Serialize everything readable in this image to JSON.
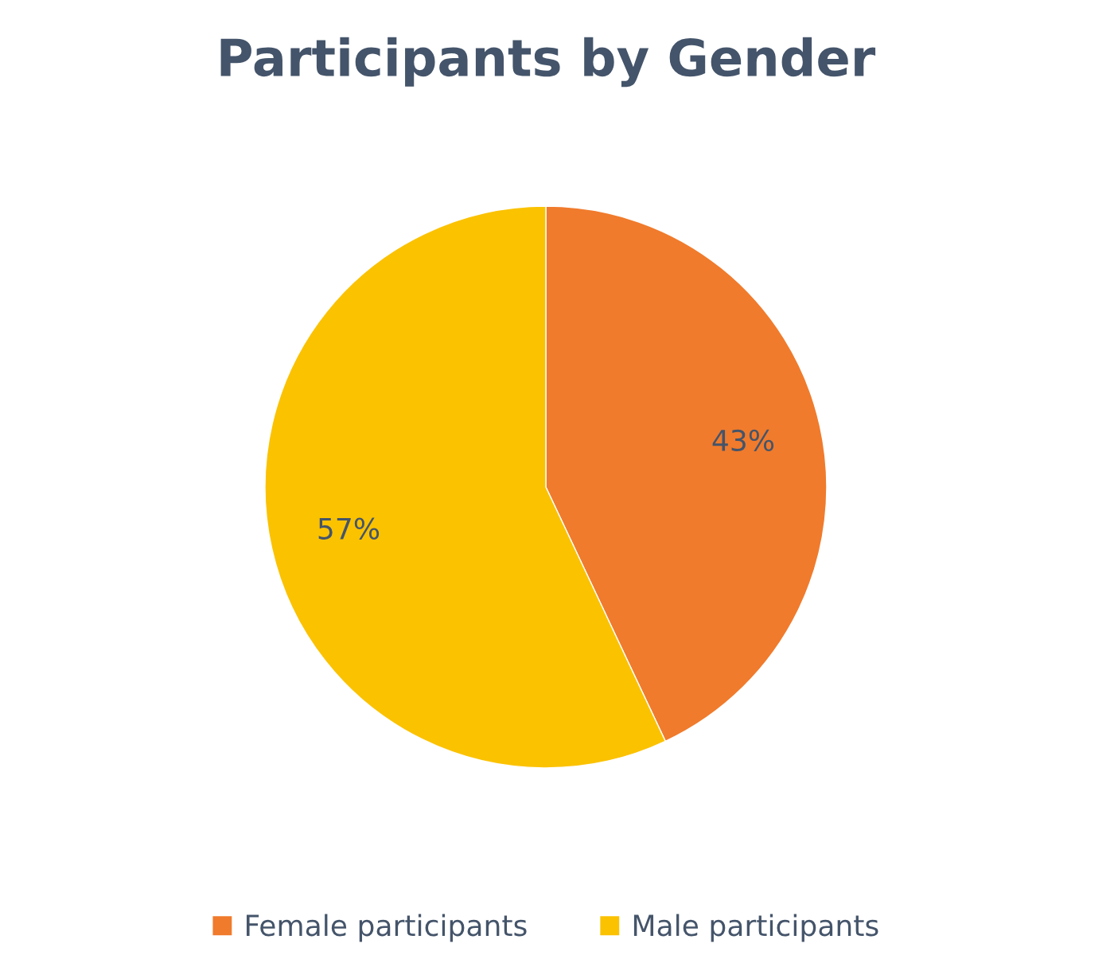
{
  "chart_data": {
    "type": "pie",
    "title": "Participants by Gender",
    "categories": [
      "Female participants",
      "Male participants"
    ],
    "values": [
      43,
      57
    ],
    "colors": [
      "#f07b2c",
      "#fbc200"
    ],
    "value_labels": [
      "43%",
      "57%"
    ],
    "legend": "bottom"
  }
}
